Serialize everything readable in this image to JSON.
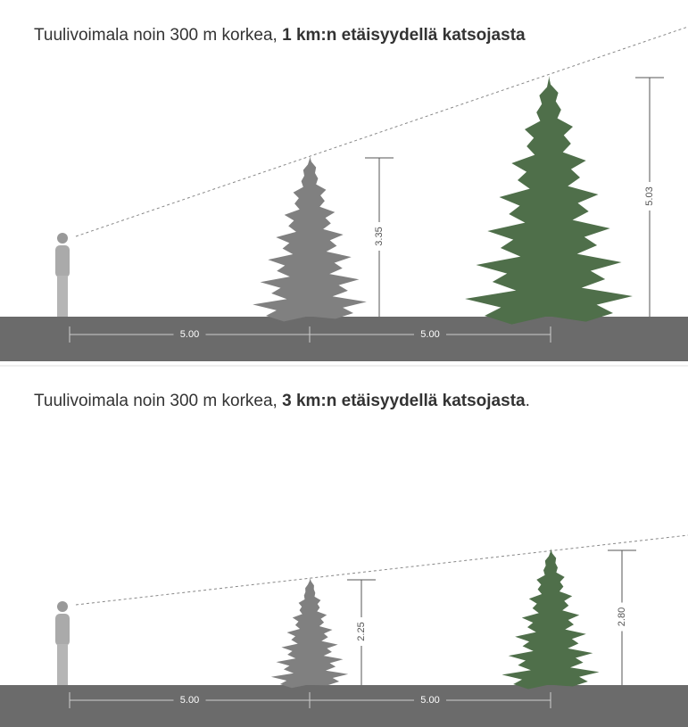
{
  "panels": [
    {
      "title": {
        "prefix": "Tuulivoimala noin 300 m korkea, ",
        "bold": "1 km:n etäisyydellä katsojasta"
      },
      "height_labels": [
        "3.35",
        "5.03"
      ],
      "distance_labels": [
        "5.00",
        "5.00"
      ]
    },
    {
      "title": {
        "prefix": "Tuulivoimala noin 300 m korkea, ",
        "bold": "3 km:n etäisyydellä katsojasta",
        "suffix": "."
      },
      "height_labels": [
        "2.25",
        "2.80"
      ],
      "distance_labels": [
        "5.00",
        "5.00"
      ]
    }
  ]
}
